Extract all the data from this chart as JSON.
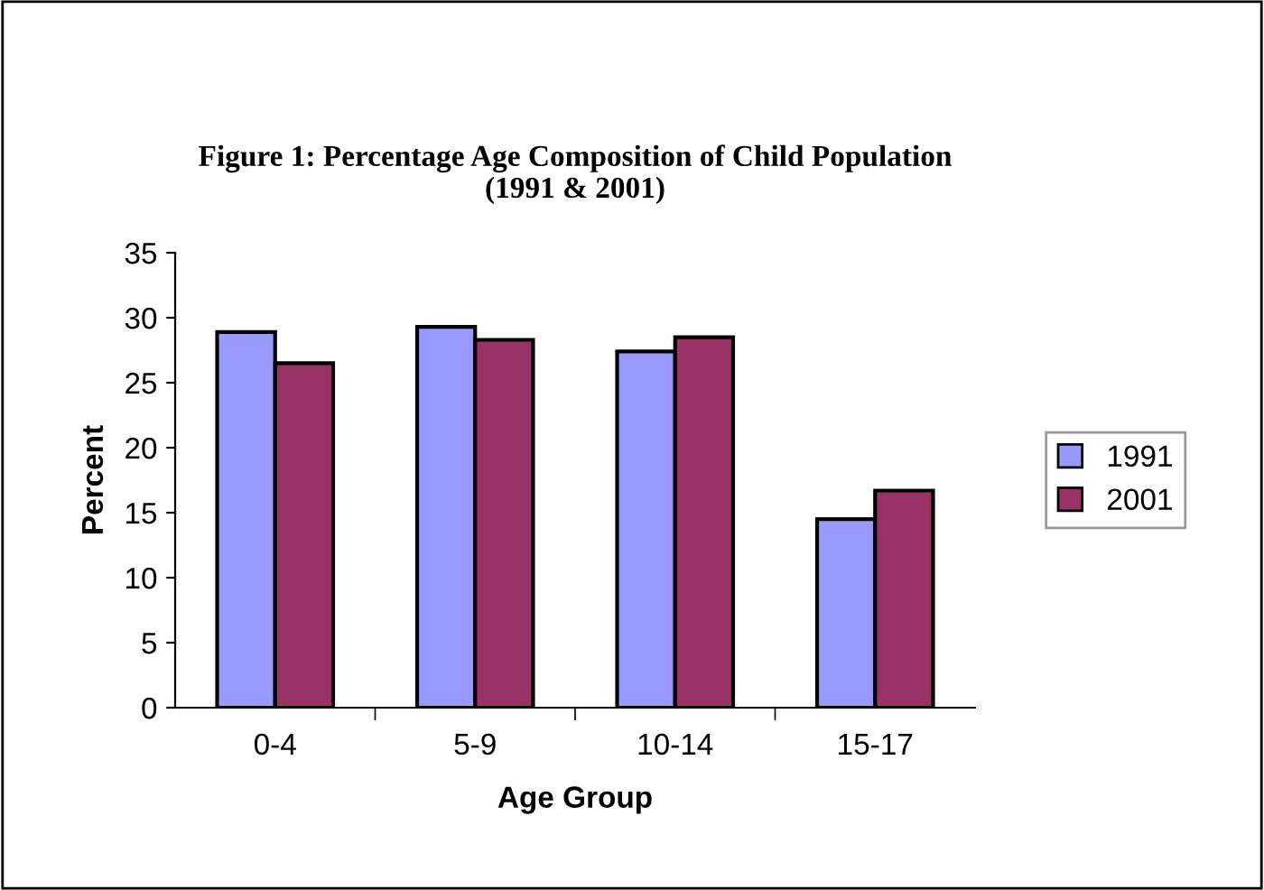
{
  "chart_data": {
    "type": "bar",
    "title": "Figure 1: Percentage Age Composition of Child Population\n(1991 & 2001)",
    "xlabel": "Age Group",
    "ylabel": "Percent",
    "categories": [
      "0-4",
      "5-9",
      "10-14",
      "15-17"
    ],
    "series": [
      {
        "name": "1991",
        "color": "#9999ff",
        "values": [
          28.9,
          29.3,
          27.4,
          14.5
        ]
      },
      {
        "name": "2001",
        "color": "#993366",
        "values": [
          26.5,
          28.3,
          28.5,
          16.7
        ]
      }
    ],
    "ylim": [
      0,
      35
    ],
    "yticks": [
      0,
      5,
      10,
      15,
      20,
      25,
      30,
      35
    ],
    "grid": false,
    "legend": "right"
  }
}
